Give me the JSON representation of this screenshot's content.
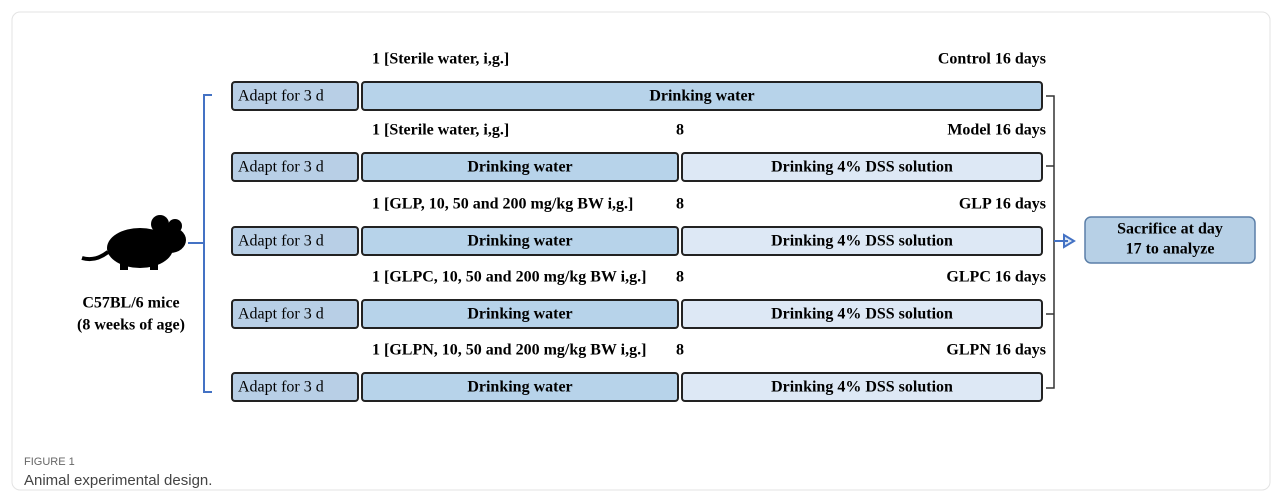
{
  "subject": {
    "lines": [
      "C57BL/6 mice",
      "(8 weeks of age)"
    ]
  },
  "groups": [
    {
      "start": "1 [Sterile water, i,g.]",
      "end": "Control 16 days",
      "segments": [
        "Adapt for 3 d",
        "Drinking water"
      ]
    },
    {
      "start": "1 [Sterile water, i,g.]",
      "marker": "8",
      "end": "Model 16 days",
      "segments": [
        "Adapt for 3 d",
        "Drinking water",
        "Drinking 4% DSS solution"
      ]
    },
    {
      "start": "1 [GLP, 10, 50 and 200 mg/kg BW i,g.]",
      "marker": "8",
      "end": "GLP 16 days",
      "segments": [
        "Adapt for 3 d",
        "Drinking water",
        "Drinking 4% DSS solution"
      ]
    },
    {
      "start": "1 [GLPC, 10, 50 and 200 mg/kg BW i,g.]",
      "marker": "8",
      "end": "GLPC 16 days",
      "segments": [
        "Adapt for 3 d",
        "Drinking water",
        "Drinking 4% DSS solution"
      ]
    },
    {
      "start": "1 [GLPN, 10, 50 and 200 mg/kg BW i,g.]",
      "marker": "8",
      "end": "GLPN 16 days",
      "segments": [
        "Adapt for 3 d",
        "Drinking water",
        "Drinking 4% DSS solution"
      ]
    }
  ],
  "outcome": {
    "lines": [
      "Sacrifice at day",
      "17 to analyze"
    ]
  },
  "caption": {
    "label": "FIGURE 1",
    "text": "Animal experimental design."
  }
}
